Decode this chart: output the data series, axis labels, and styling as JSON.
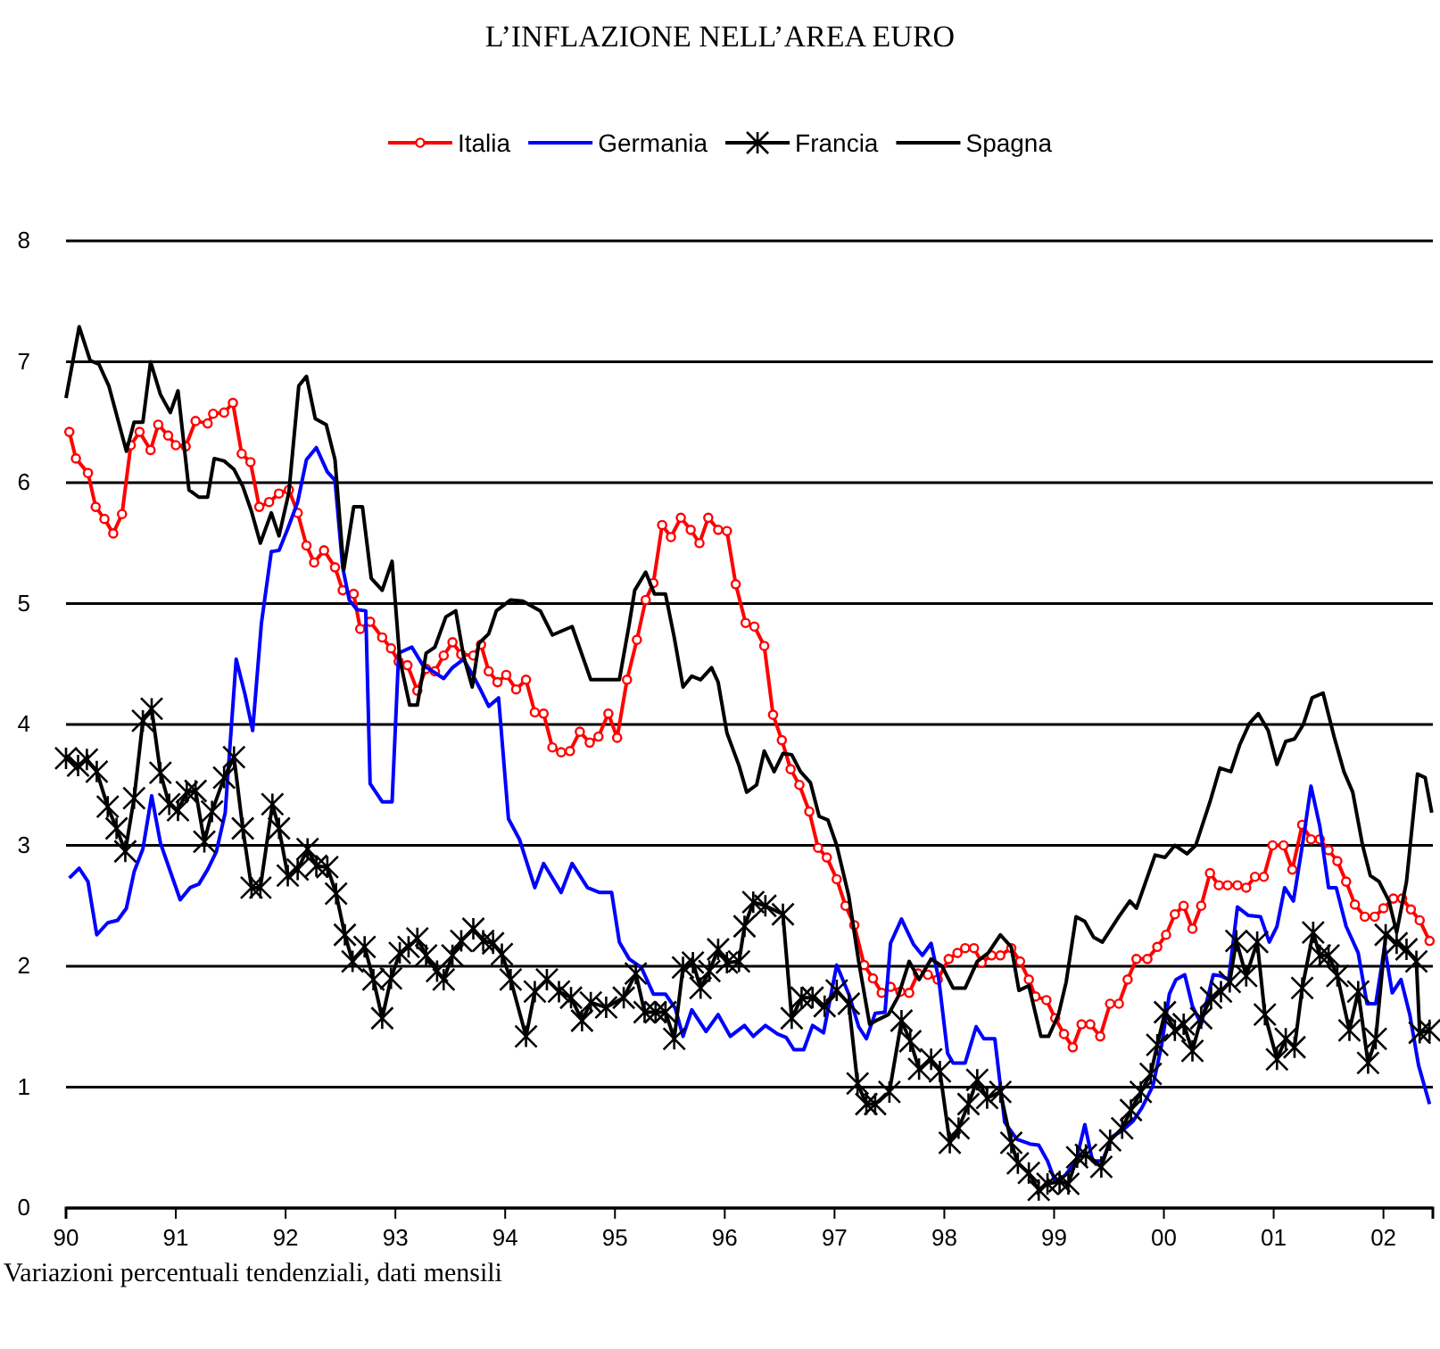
{
  "chart_data": {
    "type": "line",
    "title": "L’INFLAZIONE NELL’AREA EURO",
    "annotations": [
      "Variazioni percentuali tendenziali, dati mensili"
    ],
    "xlim": [
      1990,
      2002.45
    ],
    "xticks": [
      {
        "value": 1990,
        "label": "90"
      },
      {
        "value": 1991,
        "label": "91"
      },
      {
        "value": 1992,
        "label": "92"
      },
      {
        "value": 1993,
        "label": "93"
      },
      {
        "value": 1994,
        "label": "94"
      },
      {
        "value": 1995,
        "label": "95"
      },
      {
        "value": 1996,
        "label": "96"
      },
      {
        "value": 1997,
        "label": "97"
      },
      {
        "value": 1998,
        "label": "98"
      },
      {
        "value": 1999,
        "label": "99"
      },
      {
        "value": 2000,
        "label": "00"
      },
      {
        "value": 2001,
        "label": "01"
      },
      {
        "value": 2002,
        "label": "02"
      }
    ],
    "ylim": [
      0,
      8
    ],
    "yticks": [
      0,
      1,
      2,
      3,
      4,
      5,
      6,
      7,
      8
    ],
    "grid": "y",
    "legend": "top",
    "series": [
      {
        "name": "Italia",
        "color": "#ff0000",
        "marker": "circle",
        "x": [
          1990.03,
          1990.09,
          1990.2,
          1990.27,
          1990.35,
          1990.43,
          1990.51,
          1990.59,
          1990.67,
          1990.77,
          1990.84,
          1990.93,
          1991.0,
          1991.09,
          1991.18,
          1991.29,
          1991.34,
          1991.44,
          1991.52,
          1991.6,
          1991.68,
          1991.76,
          1991.85,
          1991.94,
          1992.03,
          1992.11,
          1992.19,
          1992.26,
          1992.35,
          1992.45,
          1992.52,
          1992.62,
          1992.68,
          1992.77,
          1992.88,
          1992.96,
          1993.03,
          1993.11,
          1993.2,
          1993.28,
          1993.36,
          1993.44,
          1993.52,
          1993.6,
          1993.71,
          1993.78,
          1993.85,
          1993.93,
          1994.01,
          1994.1,
          1994.19,
          1994.27,
          1994.35,
          1994.43,
          1994.51,
          1994.59,
          1994.68,
          1994.77,
          1994.85,
          1994.94,
          1995.02,
          1995.11,
          1995.2,
          1995.28,
          1995.35,
          1995.43,
          1995.51,
          1995.6,
          1995.69,
          1995.77,
          1995.85,
          1995.94,
          1996.02,
          1996.1,
          1996.19,
          1996.27,
          1996.36,
          1996.44,
          1996.52,
          1996.6,
          1996.68,
          1996.77,
          1996.85,
          1996.93,
          1997.02,
          1997.1,
          1997.18,
          1997.27,
          1997.35,
          1997.43,
          1997.51,
          1997.6,
          1997.68,
          1997.76,
          1997.85,
          1997.94,
          1998.04,
          1998.12,
          1998.19,
          1998.27,
          1998.34,
          1998.43,
          1998.51,
          1998.61,
          1998.69,
          1998.77,
          1998.83,
          1998.93,
          1999.01,
          1999.09,
          1999.17,
          1999.25,
          1999.33,
          1999.42,
          1999.51,
          1999.59,
          1999.67,
          1999.75,
          1999.85,
          1999.94,
          2000.02,
          2000.1,
          2000.18,
          2000.26,
          2000.34,
          2000.42,
          2000.5,
          2000.58,
          2000.67,
          2000.75,
          2000.83,
          2000.91,
          2000.99,
          2001.09,
          2001.17,
          2001.26,
          2001.34,
          2001.42,
          2001.5,
          2001.58,
          2001.66,
          2001.74,
          2001.83,
          2001.92,
          2002.0,
          2002.09,
          2002.17,
          2002.25,
          2002.33,
          2002.42
        ],
        "values": [
          6.42,
          6.2,
          6.08,
          5.8,
          5.7,
          5.58,
          5.74,
          6.31,
          6.42,
          6.27,
          6.48,
          6.39,
          6.31,
          6.3,
          6.51,
          6.49,
          6.57,
          6.58,
          6.66,
          6.24,
          6.17,
          5.8,
          5.84,
          5.91,
          5.94,
          5.75,
          5.48,
          5.34,
          5.44,
          5.3,
          5.11,
          5.08,
          4.79,
          4.85,
          4.72,
          4.63,
          4.52,
          4.49,
          4.28,
          4.46,
          4.44,
          4.57,
          4.68,
          4.58,
          4.57,
          4.66,
          4.44,
          4.35,
          4.41,
          4.29,
          4.37,
          4.1,
          4.09,
          3.81,
          3.77,
          3.78,
          3.94,
          3.85,
          3.9,
          4.09,
          3.89,
          4.37,
          4.7,
          5.03,
          5.17,
          5.65,
          5.55,
          5.71,
          5.61,
          5.5,
          5.71,
          5.61,
          5.6,
          5.16,
          4.84,
          4.81,
          4.65,
          4.08,
          3.87,
          3.63,
          3.5,
          3.28,
          2.98,
          2.9,
          2.72,
          2.5,
          2.34,
          2.01,
          1.9,
          1.78,
          1.83,
          1.79,
          1.78,
          1.94,
          1.93,
          1.89,
          2.06,
          2.11,
          2.15,
          2.15,
          2.03,
          2.09,
          2.09,
          2.15,
          2.04,
          1.89,
          1.75,
          1.72,
          1.57,
          1.44,
          1.33,
          1.52,
          1.52,
          1.42,
          1.69,
          1.69,
          1.89,
          2.06,
          2.06,
          2.16,
          2.26,
          2.43,
          2.5,
          2.31,
          2.5,
          2.77,
          2.67,
          2.67,
          2.67,
          2.65,
          2.74,
          2.74,
          3.0,
          3.0,
          2.8,
          3.17,
          3.05,
          3.05,
          2.96,
          2.87,
          2.7,
          2.51,
          2.41,
          2.41,
          2.48,
          2.56,
          2.56,
          2.47,
          2.38,
          2.21
        ]
      },
      {
        "name": "Germania",
        "color": "#0000ff",
        "marker": "none",
        "x": [
          1990.03,
          1990.12,
          1990.2,
          1990.28,
          1990.38,
          1990.47,
          1990.55,
          1990.62,
          1990.7,
          1990.78,
          1990.86,
          1990.94,
          1991.04,
          1991.13,
          1991.21,
          1991.29,
          1991.37,
          1991.45,
          1991.55,
          1991.63,
          1991.7,
          1991.78,
          1991.87,
          1991.94,
          1992.02,
          1992.11,
          1992.19,
          1992.28,
          1992.38,
          1992.45,
          1992.52,
          1992.58,
          1992.65,
          1992.73,
          1992.77,
          1992.88,
          1992.97,
          1993.03,
          1993.15,
          1993.25,
          1993.34,
          1993.44,
          1993.52,
          1993.62,
          1993.71,
          1993.78,
          1993.85,
          1993.94,
          1994.03,
          1994.13,
          1994.27,
          1994.35,
          1994.51,
          1994.61,
          1994.75,
          1994.86,
          1994.97,
          1995.04,
          1995.13,
          1995.24,
          1995.35,
          1995.46,
          1995.55,
          1995.62,
          1995.7,
          1995.83,
          1995.94,
          1996.05,
          1996.18,
          1996.26,
          1996.37,
          1996.48,
          1996.56,
          1996.63,
          1996.72,
          1996.8,
          1996.9,
          1997.02,
          1997.13,
          1997.22,
          1997.29,
          1997.37,
          1997.46,
          1997.51,
          1997.61,
          1997.72,
          1997.8,
          1997.88,
          1997.95,
          1998.03,
          1998.08,
          1998.19,
          1998.29,
          1998.36,
          1998.46,
          1998.55,
          1998.66,
          1998.78,
          1998.86,
          1998.94,
          1999.01,
          1999.1,
          1999.2,
          1999.28,
          1999.35,
          1999.44,
          1999.53,
          1999.62,
          1999.72,
          1999.8,
          1999.9,
          1999.98,
          2000.05,
          2000.11,
          2000.19,
          2000.26,
          2000.34,
          2000.45,
          2000.52,
          2000.59,
          2000.67,
          2000.77,
          2000.88,
          2000.96,
          2001.03,
          2001.1,
          2001.18,
          2001.27,
          2001.34,
          2001.42,
          2001.5,
          2001.57,
          2001.66,
          2001.77,
          2001.85,
          2001.93,
          2002.01,
          2002.08,
          2002.16,
          2002.24,
          2002.32,
          2002.42
        ],
        "values": [
          2.73,
          2.81,
          2.7,
          2.26,
          2.36,
          2.38,
          2.48,
          2.78,
          2.97,
          3.41,
          3.02,
          2.81,
          2.55,
          2.65,
          2.68,
          2.8,
          2.95,
          3.27,
          4.54,
          4.25,
          3.95,
          4.84,
          5.43,
          5.44,
          5.62,
          5.84,
          6.19,
          6.29,
          6.09,
          6.02,
          5.3,
          5.03,
          4.95,
          4.94,
          3.51,
          3.36,
          3.36,
          4.59,
          4.64,
          4.49,
          4.44,
          4.38,
          4.47,
          4.54,
          4.4,
          4.28,
          4.15,
          4.22,
          3.22,
          3.05,
          2.65,
          2.85,
          2.61,
          2.85,
          2.65,
          2.61,
          2.61,
          2.2,
          2.06,
          1.99,
          1.77,
          1.77,
          1.65,
          1.42,
          1.64,
          1.46,
          1.6,
          1.42,
          1.51,
          1.42,
          1.51,
          1.44,
          1.41,
          1.31,
          1.31,
          1.51,
          1.45,
          2.01,
          1.77,
          1.5,
          1.4,
          1.61,
          1.62,
          2.19,
          2.39,
          2.18,
          2.09,
          2.19,
          1.89,
          1.28,
          1.2,
          1.2,
          1.5,
          1.4,
          1.4,
          0.71,
          0.57,
          0.53,
          0.52,
          0.39,
          0.22,
          0.27,
          0.39,
          0.69,
          0.39,
          0.39,
          0.59,
          0.64,
          0.72,
          0.83,
          1.01,
          1.35,
          1.77,
          1.89,
          1.93,
          1.67,
          1.52,
          1.93,
          1.92,
          1.89,
          2.49,
          2.42,
          2.41,
          2.2,
          2.33,
          2.65,
          2.54,
          3.05,
          3.49,
          3.16,
          2.65,
          2.65,
          2.33,
          2.11,
          1.69,
          1.69,
          2.16,
          1.78,
          1.89,
          1.6,
          1.18,
          0.86
        ]
      },
      {
        "name": "Francia",
        "color": "#000000",
        "marker": "cross",
        "x": [
          1990.0,
          1990.11,
          1990.19,
          1990.28,
          1990.38,
          1990.46,
          1990.54,
          1990.62,
          1990.7,
          1990.78,
          1990.86,
          1990.94,
          1991.02,
          1991.1,
          1991.18,
          1991.26,
          1991.33,
          1991.44,
          1991.53,
          1991.61,
          1991.69,
          1991.77,
          1991.88,
          1991.94,
          1992.02,
          1992.11,
          1992.2,
          1992.28,
          1992.38,
          1992.46,
          1992.54,
          1992.61,
          1992.72,
          1992.8,
          1992.88,
          1992.96,
          1993.04,
          1993.12,
          1993.2,
          1993.28,
          1993.38,
          1993.44,
          1993.52,
          1993.6,
          1993.71,
          1993.8,
          1993.89,
          1993.97,
          1994.05,
          1994.19,
          1994.27,
          1994.38,
          1994.49,
          1994.6,
          1994.7,
          1994.78,
          1994.92,
          1995.08,
          1995.19,
          1995.27,
          1995.37,
          1995.46,
          1995.54,
          1995.62,
          1995.71,
          1995.78,
          1995.86,
          1995.94,
          1996.02,
          1996.13,
          1996.18,
          1996.26,
          1996.37,
          1996.53,
          1996.61,
          1996.7,
          1996.8,
          1996.91,
          1997.02,
          1997.13,
          1997.21,
          1997.29,
          1997.37,
          1997.5,
          1997.61,
          1997.69,
          1997.77,
          1997.88,
          1997.96,
          1998.05,
          1998.13,
          1998.22,
          1998.3,
          1998.39,
          1998.51,
          1998.61,
          1998.67,
          1998.77,
          1998.86,
          1998.94,
          1999.05,
          1999.13,
          1999.21,
          1999.29,
          1999.43,
          1999.51,
          1999.62,
          1999.7,
          1999.79,
          1999.88,
          1999.94,
          2000.01,
          2000.1,
          2000.18,
          2000.26,
          2000.34,
          2000.43,
          2000.52,
          2000.6,
          2000.66,
          2000.75,
          2000.85,
          2000.92,
          2001.03,
          2001.11,
          2001.19,
          2001.26,
          2001.36,
          2001.42,
          2001.5,
          2001.58,
          2001.69,
          2001.77,
          2001.86,
          2001.93,
          2002.02,
          2002.12,
          2002.21,
          2002.3,
          2002.33,
          2002.42
        ],
        "values": [
          3.72,
          3.66,
          3.71,
          3.61,
          3.32,
          3.14,
          2.95,
          3.39,
          4.03,
          4.13,
          3.6,
          3.34,
          3.29,
          3.44,
          3.45,
          3.03,
          3.28,
          3.56,
          3.73,
          3.14,
          2.65,
          2.65,
          3.34,
          3.14,
          2.75,
          2.8,
          2.97,
          2.83,
          2.82,
          2.6,
          2.26,
          2.04,
          2.16,
          1.89,
          1.57,
          1.9,
          2.11,
          2.16,
          2.23,
          2.09,
          1.96,
          1.89,
          2.09,
          2.21,
          2.31,
          2.21,
          2.19,
          2.1,
          1.89,
          1.42,
          1.79,
          1.89,
          1.79,
          1.74,
          1.55,
          1.7,
          1.66,
          1.74,
          1.94,
          1.62,
          1.62,
          1.62,
          1.4,
          1.99,
          2.03,
          1.82,
          1.96,
          2.14,
          2.03,
          2.04,
          2.33,
          2.53,
          2.5,
          2.43,
          1.57,
          1.74,
          1.74,
          1.67,
          1.8,
          1.69,
          1.03,
          0.86,
          0.86,
          0.96,
          1.55,
          1.38,
          1.15,
          1.23,
          1.13,
          0.54,
          0.66,
          0.86,
          1.06,
          0.91,
          0.96,
          0.54,
          0.37,
          0.29,
          0.15,
          0.2,
          0.22,
          0.2,
          0.42,
          0.44,
          0.34,
          0.56,
          0.66,
          0.81,
          0.96,
          1.11,
          1.35,
          1.62,
          1.47,
          1.52,
          1.3,
          1.57,
          1.74,
          1.79,
          1.87,
          2.21,
          1.92,
          2.2,
          1.6,
          1.23,
          1.4,
          1.33,
          1.82,
          2.28,
          2.09,
          2.09,
          1.92,
          1.47,
          1.79,
          1.2,
          1.4,
          2.26,
          2.19,
          2.14,
          2.04,
          1.45,
          1.47
        ]
      },
      {
        "name": "Spagna",
        "color": "#000000",
        "marker": "none",
        "x": [
          1990.0,
          1990.12,
          1990.22,
          1990.3,
          1990.39,
          1990.47,
          1990.55,
          1990.62,
          1990.7,
          1990.77,
          1990.86,
          1990.95,
          1991.02,
          1991.12,
          1991.21,
          1991.29,
          1991.35,
          1991.44,
          1991.53,
          1991.61,
          1991.69,
          1991.77,
          1991.87,
          1991.94,
          1992.03,
          1992.12,
          1992.19,
          1992.27,
          1992.37,
          1992.45,
          1992.53,
          1992.62,
          1992.7,
          1992.78,
          1992.88,
          1992.97,
          1993.04,
          1993.13,
          1993.2,
          1993.28,
          1993.36,
          1993.46,
          1993.55,
          1993.62,
          1993.7,
          1993.76,
          1993.85,
          1993.92,
          1994.05,
          1994.16,
          1994.32,
          1994.43,
          1994.61,
          1994.78,
          1995.04,
          1995.13,
          1995.18,
          1995.28,
          1995.36,
          1995.46,
          1995.54,
          1995.62,
          1995.7,
          1995.78,
          1995.88,
          1995.94,
          1996.02,
          1996.13,
          1996.2,
          1996.29,
          1996.36,
          1996.45,
          1996.53,
          1996.61,
          1996.69,
          1996.78,
          1996.86,
          1996.94,
          1997.02,
          1997.13,
          1997.22,
          1997.32,
          1997.4,
          1997.49,
          1997.58,
          1997.68,
          1997.77,
          1997.88,
          1997.98,
          1998.08,
          1998.19,
          1998.3,
          1998.4,
          1998.51,
          1998.61,
          1998.68,
          1998.77,
          1998.88,
          1998.95,
          1999.04,
          1999.11,
          1999.2,
          1999.28,
          1999.36,
          1999.44,
          1999.59,
          1999.69,
          1999.75,
          1999.92,
          2000.01,
          2000.1,
          2000.21,
          2000.29,
          2000.42,
          2000.51,
          2000.61,
          2000.69,
          2000.78,
          2000.86,
          2000.95,
          2001.03,
          2001.11,
          2001.19,
          2001.27,
          2001.35,
          2001.45,
          2001.55,
          2001.64,
          2001.72,
          2001.81,
          2001.88,
          2001.96,
          2002.05,
          2002.12,
          2002.21,
          2002.31,
          2002.38,
          2002.44
        ],
        "values": [
          6.7,
          7.29,
          7.01,
          6.98,
          6.8,
          6.53,
          6.26,
          6.5,
          6.5,
          7.0,
          6.73,
          6.58,
          6.76,
          5.94,
          5.88,
          5.88,
          6.2,
          6.18,
          6.11,
          5.97,
          5.76,
          5.5,
          5.75,
          5.56,
          5.92,
          6.8,
          6.88,
          6.53,
          6.48,
          6.19,
          5.28,
          5.8,
          5.8,
          5.21,
          5.11,
          5.35,
          4.54,
          4.16,
          4.16,
          4.59,
          4.64,
          4.89,
          4.94,
          4.57,
          4.31,
          4.67,
          4.75,
          4.94,
          5.03,
          5.02,
          4.94,
          4.74,
          4.81,
          4.37,
          4.37,
          4.83,
          5.11,
          5.26,
          5.08,
          5.08,
          4.72,
          4.31,
          4.4,
          4.37,
          4.47,
          4.35,
          3.93,
          3.66,
          3.44,
          3.5,
          3.78,
          3.61,
          3.76,
          3.75,
          3.61,
          3.52,
          3.24,
          3.21,
          3.0,
          2.58,
          2.04,
          1.52,
          1.56,
          1.6,
          1.75,
          2.04,
          1.89,
          2.06,
          2.0,
          1.82,
          1.82,
          2.04,
          2.11,
          2.26,
          2.16,
          1.8,
          1.84,
          1.42,
          1.42,
          1.6,
          1.87,
          2.41,
          2.37,
          2.24,
          2.2,
          2.41,
          2.54,
          2.48,
          2.92,
          2.9,
          3.0,
          2.93,
          3.0,
          3.36,
          3.64,
          3.61,
          3.83,
          4.01,
          4.09,
          3.95,
          3.67,
          3.86,
          3.88,
          4.0,
          4.22,
          4.26,
          3.9,
          3.61,
          3.44,
          3.0,
          2.75,
          2.7,
          2.54,
          2.28,
          2.7,
          3.59,
          3.56,
          3.27
        ]
      }
    ]
  }
}
